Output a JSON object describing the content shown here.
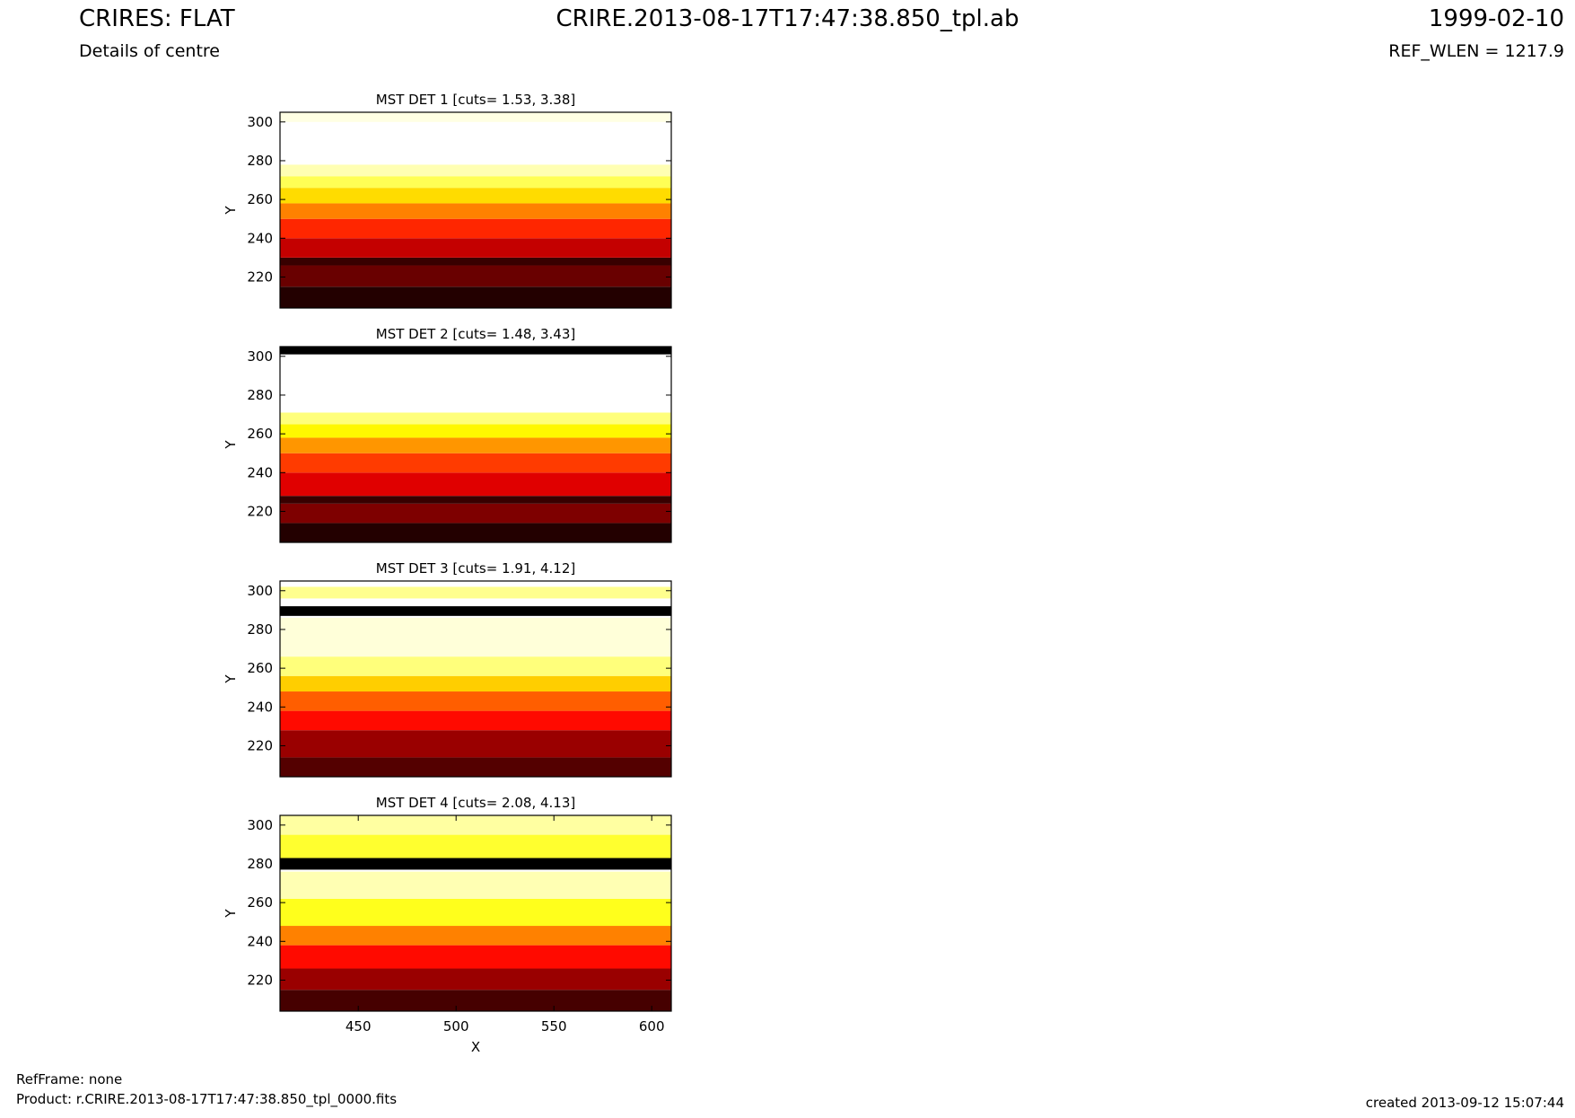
{
  "header": {
    "title_left": "CRIRES: FLAT",
    "title_center": "CRIRE.2013-08-17T17:47:38.850_tpl.ab",
    "title_right": "1999-02-10",
    "subtitle_left": "Details of centre",
    "subtitle_right": "REF_WLEN = 1217.9"
  },
  "footer": {
    "refframe": "RefFrame: none",
    "product": "Product: r.CRIRE.2013-08-17T17:47:38.850_tpl_0000.fits",
    "created": "created 2013-09-12 15:07:44"
  },
  "chart_data": [
    {
      "type": "heatmap",
      "title": "MST DET 1 [cuts= 1.53, 3.38]",
      "xlabel": "",
      "ylabel": "Y",
      "xlim": [
        410,
        610
      ],
      "ylim": [
        204,
        305
      ],
      "yticks": [
        220,
        240,
        260,
        280,
        300
      ],
      "xticks": [],
      "colormap": "hot",
      "cuts": [
        1.53,
        3.38
      ],
      "rows": [
        {
          "y": [
            204,
            215
          ],
          "level": 0.05
        },
        {
          "y": [
            215,
            226
          ],
          "level": 0.15
        },
        {
          "y": [
            226,
            230
          ],
          "level": 0.08
        },
        {
          "y": [
            230,
            240
          ],
          "level": 0.28
        },
        {
          "y": [
            240,
            250
          ],
          "level": 0.42
        },
        {
          "y": [
            250,
            258
          ],
          "level": 0.55
        },
        {
          "y": [
            258,
            266
          ],
          "level": 0.68
        },
        {
          "y": [
            266,
            272
          ],
          "level": 0.82
        },
        {
          "y": [
            272,
            278
          ],
          "level": 0.92
        },
        {
          "y": [
            278,
            300
          ],
          "level": 1.0
        },
        {
          "y": [
            300,
            305
          ],
          "level": 0.97
        }
      ]
    },
    {
      "type": "heatmap",
      "title": "MST DET 2 [cuts= 1.48, 3.43]",
      "xlabel": "",
      "ylabel": "Y",
      "xlim": [
        410,
        610
      ],
      "ylim": [
        204,
        305
      ],
      "yticks": [
        220,
        240,
        260,
        280,
        300
      ],
      "xticks": [],
      "colormap": "hot",
      "cuts": [
        1.48,
        3.43
      ],
      "rows": [
        {
          "y": [
            204,
            214
          ],
          "level": 0.05
        },
        {
          "y": [
            214,
            224
          ],
          "level": 0.18
        },
        {
          "y": [
            224,
            228
          ],
          "level": 0.08
        },
        {
          "y": [
            228,
            240
          ],
          "level": 0.32
        },
        {
          "y": [
            240,
            250
          ],
          "level": 0.45
        },
        {
          "y": [
            250,
            258
          ],
          "level": 0.58
        },
        {
          "y": [
            258,
            265
          ],
          "level": 0.72
        },
        {
          "y": [
            265,
            271
          ],
          "level": 0.86
        },
        {
          "y": [
            271,
            301
          ],
          "level": 1.0
        },
        {
          "y": [
            301,
            305
          ],
          "level": 0.0
        }
      ]
    },
    {
      "type": "heatmap",
      "title": "MST DET 3 [cuts= 1.91, 4.12]",
      "xlabel": "",
      "ylabel": "Y",
      "xlim": [
        410,
        610
      ],
      "ylim": [
        204,
        305
      ],
      "yticks": [
        220,
        240,
        260,
        280,
        300
      ],
      "xticks": [],
      "colormap": "hot",
      "cuts": [
        1.91,
        4.12
      ],
      "rows": [
        {
          "y": [
            204,
            214
          ],
          "level": 0.12
        },
        {
          "y": [
            214,
            228
          ],
          "level": 0.22
        },
        {
          "y": [
            228,
            238
          ],
          "level": 0.38
        },
        {
          "y": [
            238,
            248
          ],
          "level": 0.5
        },
        {
          "y": [
            248,
            256
          ],
          "level": 0.66
        },
        {
          "y": [
            256,
            266
          ],
          "level": 0.86
        },
        {
          "y": [
            266,
            286
          ],
          "level": 0.96
        },
        {
          "y": [
            286,
            287
          ],
          "level": 1.0
        },
        {
          "y": [
            287,
            292
          ],
          "level": 0.0
        },
        {
          "y": [
            292,
            296
          ],
          "level": 1.0
        },
        {
          "y": [
            296,
            302
          ],
          "level": 0.88
        },
        {
          "y": [
            302,
            305
          ],
          "level": 1.0
        }
      ]
    },
    {
      "type": "heatmap",
      "title": "MST DET 4 [cuts= 2.08, 4.13]",
      "xlabel": "X",
      "ylabel": "Y",
      "xlim": [
        410,
        610
      ],
      "ylim": [
        204,
        305
      ],
      "yticks": [
        220,
        240,
        260,
        280,
        300
      ],
      "xticks": [
        450,
        500,
        550,
        600
      ],
      "colormap": "hot",
      "cuts": [
        2.08,
        4.13
      ],
      "rows": [
        {
          "y": [
            204,
            215
          ],
          "level": 0.1
        },
        {
          "y": [
            215,
            226
          ],
          "level": 0.22
        },
        {
          "y": [
            226,
            238
          ],
          "level": 0.38
        },
        {
          "y": [
            238,
            248
          ],
          "level": 0.55
        },
        {
          "y": [
            248,
            262
          ],
          "level": 0.76
        },
        {
          "y": [
            262,
            276
          ],
          "level": 0.92
        },
        {
          "y": [
            276,
            277
          ],
          "level": 1.0
        },
        {
          "y": [
            277,
            283
          ],
          "level": 0.0
        },
        {
          "y": [
            283,
            295
          ],
          "level": 0.78
        },
        {
          "y": [
            295,
            305
          ],
          "level": 0.9
        }
      ]
    }
  ]
}
